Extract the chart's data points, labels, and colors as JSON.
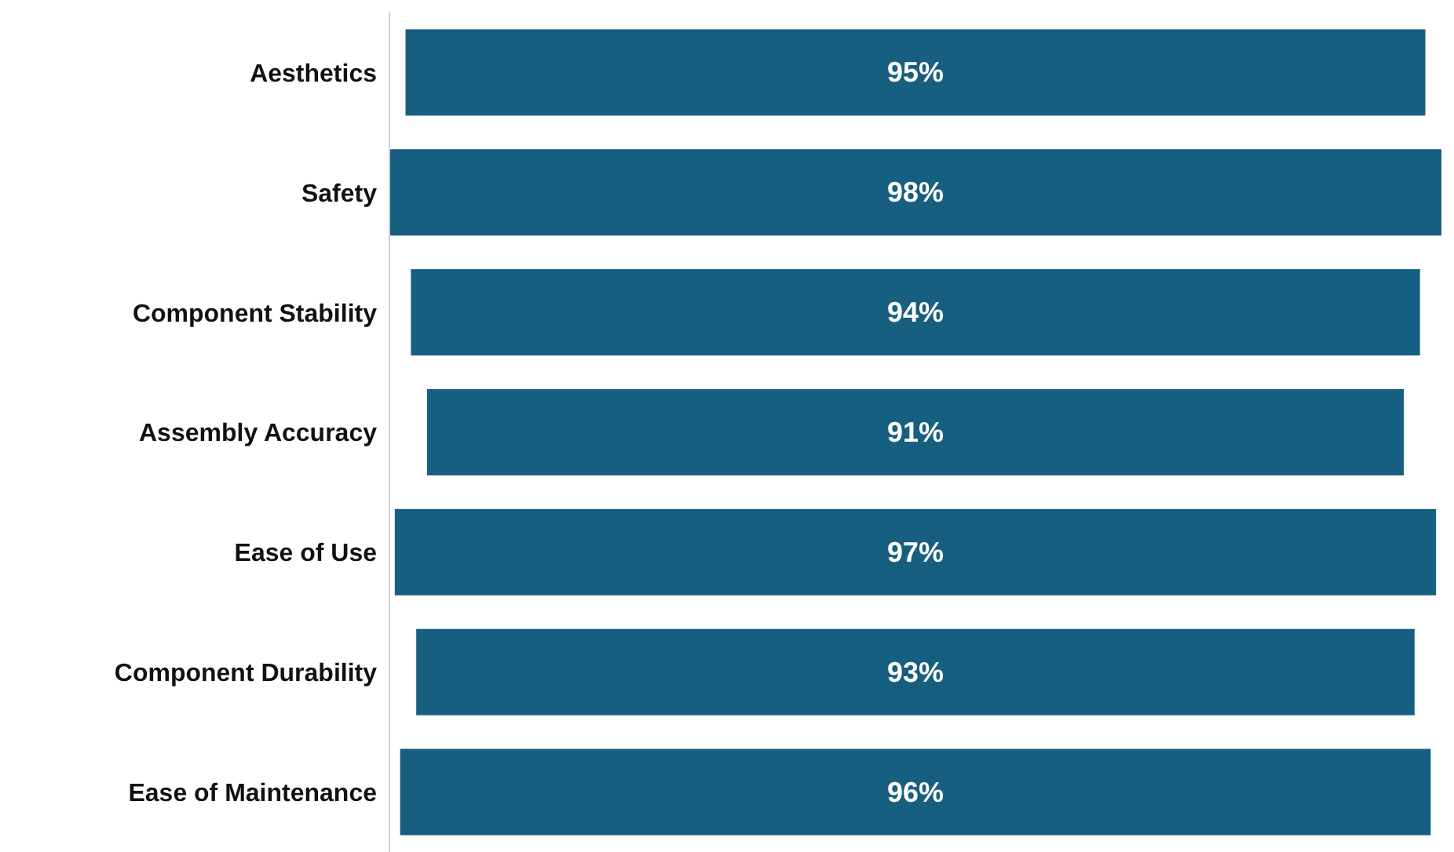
{
  "chart_data": {
    "type": "other",
    "categories": [
      "Aesthetics",
      "Safety",
      "Component Stability",
      "Assembly Accuracy",
      "Ease of Use",
      "Component Durability",
      "Ease of Maintenance"
    ],
    "values": [
      95,
      98,
      94,
      91,
      97,
      93,
      96
    ],
    "value_labels": [
      "95%",
      "98%",
      "94%",
      "91%",
      "97%",
      "93%",
      "96%"
    ],
    "color": "#175f80",
    "data_labels": true
  }
}
